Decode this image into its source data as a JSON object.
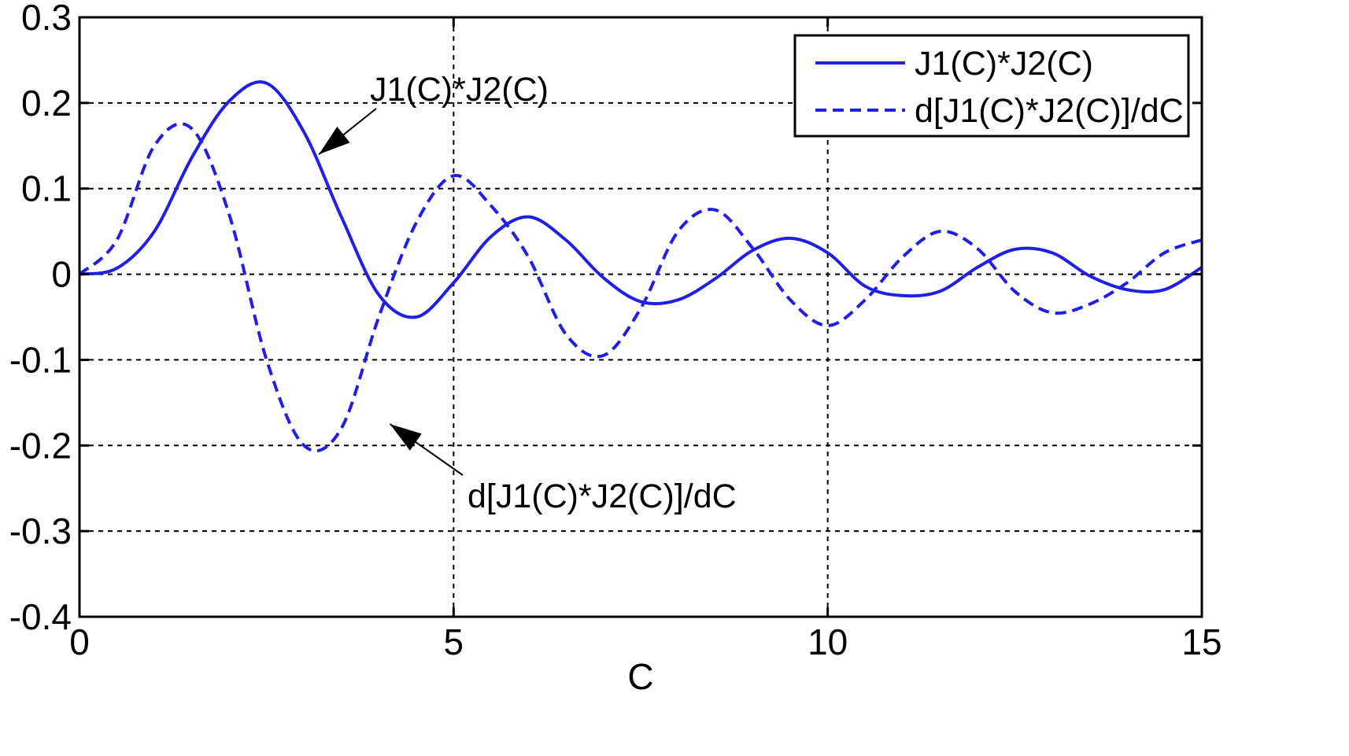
{
  "chart_data": {
    "type": "line",
    "title": "",
    "xlabel": "C",
    "ylabel": "",
    "xlim": [
      0,
      15
    ],
    "ylim": [
      -0.4,
      0.3
    ],
    "xticks": [
      0,
      5,
      10,
      15
    ],
    "xtick_labels": [
      "0",
      "5",
      "10",
      "15"
    ],
    "yticks": [
      0.3,
      0.2,
      0.1,
      0,
      -0.1,
      -0.2,
      -0.3,
      -0.4
    ],
    "ytick_labels": [
      "0.3",
      "0.2",
      "0.1",
      "0",
      "-0.1",
      "-0.2",
      "-0.3",
      "-0.4"
    ],
    "grid": true,
    "legend_position": "top-right",
    "x": [
      0,
      0.5,
      1,
      1.5,
      2,
      2.5,
      3,
      3.5,
      4,
      4.5,
      5,
      5.5,
      6,
      6.5,
      7,
      7.5,
      8,
      8.5,
      9,
      9.5,
      10,
      10.5,
      11,
      11.5,
      12,
      12.5,
      13,
      13.5,
      14,
      14.5,
      15
    ],
    "series": [
      {
        "name": "J1(C)*J2(C)",
        "style": "solid",
        "color": "#1f1fe6",
        "values": [
          0,
          0.007,
          0.05,
          0.136,
          0.202,
          0.223,
          0.166,
          0.067,
          -0.024,
          -0.05,
          -0.01,
          0.044,
          0.067,
          0.04,
          -0.004,
          -0.032,
          -0.03,
          -0.005,
          0.028,
          0.042,
          0.025,
          -0.014,
          -0.025,
          -0.02,
          0.008,
          0.029,
          0.025,
          -0.002,
          -0.018,
          -0.018,
          0.008
        ]
      },
      {
        "name": "d[J1(C)*J2(C)]/dC",
        "style": "dashed",
        "color": "#1f1fe6",
        "values": [
          0,
          0.04,
          0.15,
          0.17,
          0.07,
          -0.1,
          -0.2,
          -0.18,
          -0.05,
          0.06,
          0.115,
          0.08,
          0.02,
          -0.07,
          -0.095,
          -0.04,
          0.05,
          0.075,
          0.03,
          -0.03,
          -0.06,
          -0.03,
          0.02,
          0.05,
          0.03,
          -0.02,
          -0.045,
          -0.035,
          -0.01,
          0.025,
          0.04
        ]
      }
    ],
    "annotations": [
      {
        "text": "J1(C)*J2(C)",
        "arrow_target": [
          3.2,
          0.14
        ]
      },
      {
        "text": "d[J1(C)*J2(C)]/dC",
        "arrow_target": [
          4.15,
          -0.175
        ]
      }
    ]
  }
}
